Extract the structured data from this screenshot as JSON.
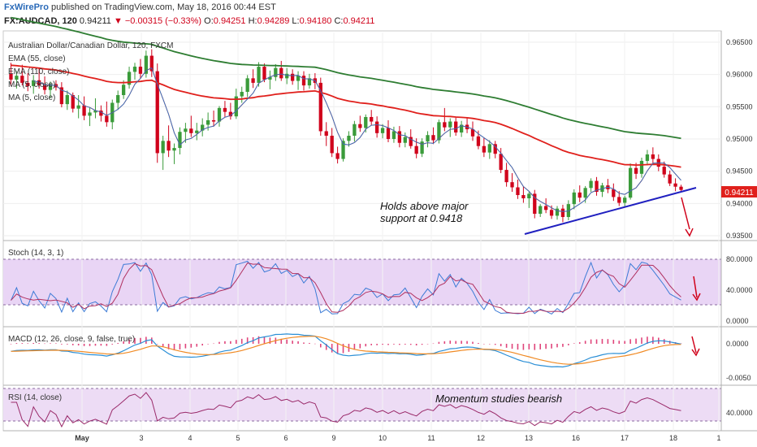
{
  "header": {
    "brand": "FxWirePro",
    "published": " published on TradingView.com, May 18, 2016 00:44 EST",
    "symbol": "FX:AUDCAD, 120",
    "last": "0.94211",
    "change": "▼ −0.00315 (−0.33%)",
    "open_label": "O:",
    "open": "0.94251",
    "high_label": "H:",
    "high": "0.94289",
    "low_label": "L:",
    "low": "0.94180",
    "close_label": "C:",
    "close": "0.94211"
  },
  "legend": {
    "title": "Australian Dollar/Canadian Dollar, 120, FXCM",
    "ema55": "EMA (55, close)",
    "ema110": "EMA (110, close)",
    "ma5": "MA (5, close)",
    "ma5b": "MA (5, close)"
  },
  "price_tag": "0.94211",
  "annotations": {
    "support_line1": "Holds above major",
    "support_line2": "support at 0.9418",
    "momentum": "Momentum studies bearish"
  },
  "panels": {
    "stoch": {
      "label": "Stoch (14, 3, 1)",
      "ticks": [
        "80.0000",
        "40.0000",
        "0.0000"
      ]
    },
    "macd": {
      "label": "MACD (12, 26, close, 9, false, true)",
      "ticks": [
        "0.0000",
        "-0.0050"
      ]
    },
    "rsi": {
      "label": "RSI (14, close)",
      "ticks": [
        "40.0000"
      ]
    }
  },
  "colors": {
    "up_candle": "#3a9b3a",
    "down_candle": "#d0021b",
    "ema55": "#e0201c",
    "ema110": "#2e7d32",
    "ma5": "#b71c1c",
    "trendline": "#2020c0",
    "stoch_k": "#3c7bd6",
    "stoch_d": "#b03060",
    "stoch_band": "#e9d5f5",
    "macd_line": "#2b8fd6",
    "signal_line": "#f08a24",
    "histogram": "#e0457b",
    "rsi_line": "#9a2a6a",
    "rsi_band": "#eddcf5",
    "price_tag": "#e0201c"
  },
  "chart_data": {
    "type": "line",
    "title": "Australian Dollar/Canadian Dollar, 120, FXCM",
    "x_labels": [
      "May",
      "3",
      "4",
      "5",
      "6",
      "9",
      "10",
      "11",
      "12",
      "13",
      "16",
      "17",
      "18",
      "1"
    ],
    "price_axis_ticks": [
      "0.96500",
      "0.96000",
      "0.95500",
      "0.95000",
      "0.94500",
      "0.94000",
      "0.93500"
    ],
    "ylim": [
      0.9345,
      0.9665
    ],
    "candles": [
      [
        0.9601,
        0.9618,
        0.9582,
        0.9592
      ],
      [
        0.9592,
        0.9605,
        0.9578,
        0.9598
      ],
      [
        0.9598,
        0.9615,
        0.9583,
        0.9587
      ],
      [
        0.9587,
        0.9602,
        0.9574,
        0.9582
      ],
      [
        0.9582,
        0.9599,
        0.957,
        0.9591
      ],
      [
        0.9591,
        0.961,
        0.9578,
        0.9583
      ],
      [
        0.9583,
        0.9597,
        0.9569,
        0.9576
      ],
      [
        0.9576,
        0.9589,
        0.9563,
        0.9585
      ],
      [
        0.9585,
        0.9591,
        0.9575,
        0.958
      ],
      [
        0.958,
        0.9588,
        0.9549,
        0.9554
      ],
      [
        0.9554,
        0.9575,
        0.9545,
        0.9568
      ],
      [
        0.9568,
        0.9572,
        0.9541,
        0.9547
      ],
      [
        0.9547,
        0.9568,
        0.9532,
        0.9552
      ],
      [
        0.9552,
        0.9566,
        0.9529,
        0.9536
      ],
      [
        0.9536,
        0.9549,
        0.952,
        0.9541
      ],
      [
        0.9541,
        0.9563,
        0.9532,
        0.9544
      ],
      [
        0.9544,
        0.9552,
        0.9527,
        0.9536
      ],
      [
        0.9536,
        0.9558,
        0.9519,
        0.9526
      ],
      [
        0.9526,
        0.9561,
        0.9515,
        0.9556
      ],
      [
        0.9556,
        0.9575,
        0.9545,
        0.9568
      ],
      [
        0.9568,
        0.9591,
        0.9562,
        0.9584
      ],
      [
        0.9584,
        0.9612,
        0.9578,
        0.9604
      ],
      [
        0.9604,
        0.9618,
        0.9592,
        0.9612
      ],
      [
        0.9612,
        0.9624,
        0.9594,
        0.9601
      ],
      [
        0.9601,
        0.9637,
        0.9595,
        0.9629
      ],
      [
        0.9629,
        0.9639,
        0.9596,
        0.9605
      ],
      [
        0.9605,
        0.9617,
        0.9463,
        0.9478
      ],
      [
        0.9478,
        0.9505,
        0.9452,
        0.9497
      ],
      [
        0.9497,
        0.9521,
        0.9472,
        0.9482
      ],
      [
        0.9482,
        0.9493,
        0.9461,
        0.9486
      ],
      [
        0.9486,
        0.9518,
        0.9476,
        0.9511
      ],
      [
        0.9511,
        0.9525,
        0.9494,
        0.9516
      ],
      [
        0.9516,
        0.9536,
        0.9503,
        0.9509
      ],
      [
        0.9509,
        0.9525,
        0.9498,
        0.9513
      ],
      [
        0.9513,
        0.9532,
        0.9504,
        0.9522
      ],
      [
        0.9522,
        0.9541,
        0.9513,
        0.9529
      ],
      [
        0.9529,
        0.9544,
        0.9519,
        0.9527
      ],
      [
        0.9527,
        0.9551,
        0.9519,
        0.9548
      ],
      [
        0.9548,
        0.9559,
        0.9534,
        0.9542
      ],
      [
        0.9542,
        0.9556,
        0.953,
        0.9535
      ],
      [
        0.9535,
        0.9578,
        0.9531,
        0.9566
      ],
      [
        0.9566,
        0.9581,
        0.9556,
        0.9573
      ],
      [
        0.9573,
        0.9599,
        0.9565,
        0.9594
      ],
      [
        0.9594,
        0.9608,
        0.9579,
        0.9587
      ],
      [
        0.9587,
        0.9619,
        0.9581,
        0.9612
      ],
      [
        0.9612,
        0.9617,
        0.9588,
        0.9592
      ],
      [
        0.9592,
        0.9606,
        0.9577,
        0.9596
      ],
      [
        0.9596,
        0.9616,
        0.959,
        0.961
      ],
      [
        0.961,
        0.9621,
        0.959,
        0.9594
      ],
      [
        0.9594,
        0.961,
        0.9585,
        0.9601
      ],
      [
        0.9601,
        0.9608,
        0.9584,
        0.959
      ],
      [
        0.959,
        0.9605,
        0.9576,
        0.9598
      ],
      [
        0.9598,
        0.9605,
        0.9575,
        0.9583
      ],
      [
        0.9583,
        0.9601,
        0.9578,
        0.9594
      ],
      [
        0.9594,
        0.9602,
        0.9577,
        0.9587
      ],
      [
        0.9587,
        0.9595,
        0.9505,
        0.9512
      ],
      [
        0.9512,
        0.9526,
        0.9489,
        0.9505
      ],
      [
        0.9505,
        0.9517,
        0.9472,
        0.9478
      ],
      [
        0.9478,
        0.9488,
        0.9462,
        0.9469
      ],
      [
        0.9469,
        0.9501,
        0.9465,
        0.9497
      ],
      [
        0.9497,
        0.9512,
        0.9488,
        0.9505
      ],
      [
        0.9505,
        0.9528,
        0.9496,
        0.9523
      ],
      [
        0.9523,
        0.9536,
        0.9511,
        0.9517
      ],
      [
        0.9517,
        0.9538,
        0.951,
        0.9534
      ],
      [
        0.9534,
        0.9545,
        0.9522,
        0.9527
      ],
      [
        0.9527,
        0.9535,
        0.9502,
        0.9509
      ],
      [
        0.9509,
        0.9523,
        0.9501,
        0.9517
      ],
      [
        0.9517,
        0.9529,
        0.9495,
        0.95
      ],
      [
        0.95,
        0.9519,
        0.9494,
        0.9512
      ],
      [
        0.9512,
        0.952,
        0.9487,
        0.9494
      ],
      [
        0.9494,
        0.951,
        0.9487,
        0.9503
      ],
      [
        0.9503,
        0.9515,
        0.9485,
        0.9489
      ],
      [
        0.9489,
        0.9501,
        0.947,
        0.9477
      ],
      [
        0.9477,
        0.9501,
        0.9472,
        0.9496
      ],
      [
        0.9496,
        0.9512,
        0.9487,
        0.9506
      ],
      [
        0.9506,
        0.9518,
        0.9492,
        0.9498
      ],
      [
        0.9498,
        0.953,
        0.9493,
        0.9526
      ],
      [
        0.9526,
        0.9548,
        0.9512,
        0.9518
      ],
      [
        0.9518,
        0.9532,
        0.9503,
        0.9527
      ],
      [
        0.9527,
        0.9533,
        0.9505,
        0.951
      ],
      [
        0.951,
        0.9528,
        0.9503,
        0.9522
      ],
      [
        0.9522,
        0.9532,
        0.9509,
        0.9515
      ],
      [
        0.9515,
        0.9527,
        0.9497,
        0.9504
      ],
      [
        0.9504,
        0.9513,
        0.9484,
        0.9489
      ],
      [
        0.9489,
        0.9502,
        0.9472,
        0.9479
      ],
      [
        0.9479,
        0.9498,
        0.9469,
        0.9492
      ],
      [
        0.9492,
        0.9497,
        0.947,
        0.9477
      ],
      [
        0.9477,
        0.9486,
        0.9447,
        0.9452
      ],
      [
        0.9452,
        0.9463,
        0.9426,
        0.9433
      ],
      [
        0.9433,
        0.9447,
        0.9418,
        0.9425
      ],
      [
        0.9425,
        0.9437,
        0.9407,
        0.9413
      ],
      [
        0.9413,
        0.9426,
        0.9401,
        0.9408
      ],
      [
        0.9408,
        0.9418,
        0.9393,
        0.9415
      ],
      [
        0.9415,
        0.9421,
        0.9377,
        0.9384
      ],
      [
        0.9384,
        0.9399,
        0.9379,
        0.9396
      ],
      [
        0.9396,
        0.9408,
        0.9385,
        0.939
      ],
      [
        0.939,
        0.9397,
        0.9376,
        0.9381
      ],
      [
        0.9381,
        0.9396,
        0.9375,
        0.9392
      ],
      [
        0.9392,
        0.9398,
        0.9371,
        0.9379
      ],
      [
        0.9379,
        0.9405,
        0.9374,
        0.9399
      ],
      [
        0.9399,
        0.9422,
        0.9391,
        0.9417
      ],
      [
        0.9417,
        0.9428,
        0.9402,
        0.9409
      ],
      [
        0.9409,
        0.9427,
        0.9401,
        0.9424
      ],
      [
        0.9424,
        0.9439,
        0.9418,
        0.9435
      ],
      [
        0.9435,
        0.9441,
        0.9412,
        0.9418
      ],
      [
        0.9418,
        0.9432,
        0.941,
        0.9428
      ],
      [
        0.9428,
        0.9438,
        0.9416,
        0.9422
      ],
      [
        0.9422,
        0.9431,
        0.9404,
        0.941
      ],
      [
        0.941,
        0.9419,
        0.9396,
        0.9401
      ],
      [
        0.9401,
        0.9412,
        0.9395,
        0.9409
      ],
      [
        0.9409,
        0.9462,
        0.9406,
        0.9455
      ],
      [
        0.9455,
        0.9463,
        0.9438,
        0.9446
      ],
      [
        0.9446,
        0.9471,
        0.944,
        0.9466
      ],
      [
        0.9466,
        0.9483,
        0.9459,
        0.9476
      ],
      [
        0.9476,
        0.9487,
        0.9462,
        0.9469
      ],
      [
        0.9469,
        0.9476,
        0.945,
        0.9457
      ],
      [
        0.9457,
        0.9465,
        0.944,
        0.9445
      ],
      [
        0.9445,
        0.9451,
        0.9427,
        0.9431
      ],
      [
        0.9431,
        0.9439,
        0.9419,
        0.9426
      ],
      [
        0.9426,
        0.9429,
        0.9418,
        0.9421
      ]
    ]
  }
}
